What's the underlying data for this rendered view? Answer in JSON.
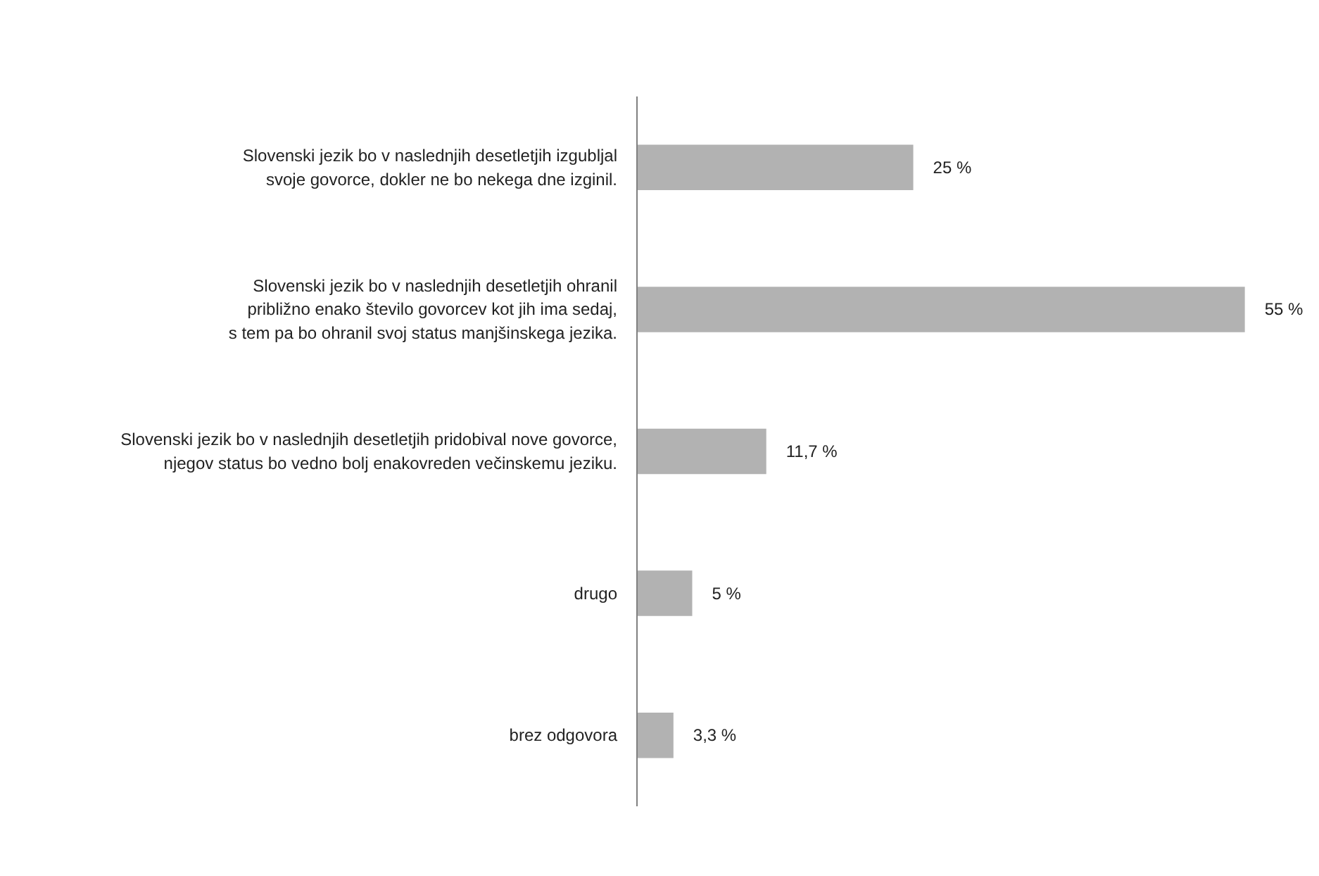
{
  "chart_data": {
    "type": "bar",
    "orientation": "horizontal",
    "categories": [
      "Slovenski jezik bo v naslednjih desetletjih izgubljal\nsvoje govorce, dokler ne bo nekega dne izginil.",
      "Slovenski jezik bo v naslednjih desetletjih ohranil\npribližno enako število govorcev kot jih ima sedaj,\ns tem pa bo ohranil svoj status manjšinskega jezika.",
      "Slovenski jezik bo v naslednjih desetletjih pridobival nove govorce,\nnjegov status bo vedno bolj enakovreden večinskemu jeziku.",
      "drugo",
      "brez odgovora"
    ],
    "values": [
      25,
      55,
      11.7,
      5,
      3.3
    ],
    "value_labels": [
      "25 %",
      "55 %",
      "11,7 %",
      "5 %",
      "3,3 %"
    ],
    "color": "#b2b2b2"
  }
}
